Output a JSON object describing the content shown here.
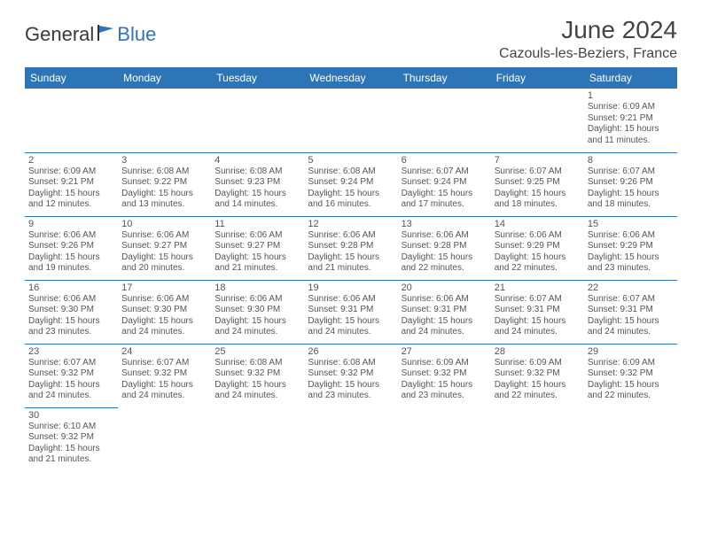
{
  "logo": {
    "text1": "General",
    "text2": "Blue"
  },
  "title": "June 2024",
  "location": "Cazouls-les-Beziers, France",
  "colors": {
    "header_bg": "#2e75b6",
    "header_text": "#ffffff",
    "border": "#2e75b6",
    "text": "#555555",
    "title": "#444444"
  },
  "day_headers": [
    "Sunday",
    "Monday",
    "Tuesday",
    "Wednesday",
    "Thursday",
    "Friday",
    "Saturday"
  ],
  "weeks": [
    [
      null,
      null,
      null,
      null,
      null,
      null,
      {
        "n": "1",
        "sr": "Sunrise: 6:09 AM",
        "ss": "Sunset: 9:21 PM",
        "d1": "Daylight: 15 hours",
        "d2": "and 11 minutes."
      }
    ],
    [
      {
        "n": "2",
        "sr": "Sunrise: 6:09 AM",
        "ss": "Sunset: 9:21 PM",
        "d1": "Daylight: 15 hours",
        "d2": "and 12 minutes."
      },
      {
        "n": "3",
        "sr": "Sunrise: 6:08 AM",
        "ss": "Sunset: 9:22 PM",
        "d1": "Daylight: 15 hours",
        "d2": "and 13 minutes."
      },
      {
        "n": "4",
        "sr": "Sunrise: 6:08 AM",
        "ss": "Sunset: 9:23 PM",
        "d1": "Daylight: 15 hours",
        "d2": "and 14 minutes."
      },
      {
        "n": "5",
        "sr": "Sunrise: 6:08 AM",
        "ss": "Sunset: 9:24 PM",
        "d1": "Daylight: 15 hours",
        "d2": "and 16 minutes."
      },
      {
        "n": "6",
        "sr": "Sunrise: 6:07 AM",
        "ss": "Sunset: 9:24 PM",
        "d1": "Daylight: 15 hours",
        "d2": "and 17 minutes."
      },
      {
        "n": "7",
        "sr": "Sunrise: 6:07 AM",
        "ss": "Sunset: 9:25 PM",
        "d1": "Daylight: 15 hours",
        "d2": "and 18 minutes."
      },
      {
        "n": "8",
        "sr": "Sunrise: 6:07 AM",
        "ss": "Sunset: 9:26 PM",
        "d1": "Daylight: 15 hours",
        "d2": "and 18 minutes."
      }
    ],
    [
      {
        "n": "9",
        "sr": "Sunrise: 6:06 AM",
        "ss": "Sunset: 9:26 PM",
        "d1": "Daylight: 15 hours",
        "d2": "and 19 minutes."
      },
      {
        "n": "10",
        "sr": "Sunrise: 6:06 AM",
        "ss": "Sunset: 9:27 PM",
        "d1": "Daylight: 15 hours",
        "d2": "and 20 minutes."
      },
      {
        "n": "11",
        "sr": "Sunrise: 6:06 AM",
        "ss": "Sunset: 9:27 PM",
        "d1": "Daylight: 15 hours",
        "d2": "and 21 minutes."
      },
      {
        "n": "12",
        "sr": "Sunrise: 6:06 AM",
        "ss": "Sunset: 9:28 PM",
        "d1": "Daylight: 15 hours",
        "d2": "and 21 minutes."
      },
      {
        "n": "13",
        "sr": "Sunrise: 6:06 AM",
        "ss": "Sunset: 9:28 PM",
        "d1": "Daylight: 15 hours",
        "d2": "and 22 minutes."
      },
      {
        "n": "14",
        "sr": "Sunrise: 6:06 AM",
        "ss": "Sunset: 9:29 PM",
        "d1": "Daylight: 15 hours",
        "d2": "and 22 minutes."
      },
      {
        "n": "15",
        "sr": "Sunrise: 6:06 AM",
        "ss": "Sunset: 9:29 PM",
        "d1": "Daylight: 15 hours",
        "d2": "and 23 minutes."
      }
    ],
    [
      {
        "n": "16",
        "sr": "Sunrise: 6:06 AM",
        "ss": "Sunset: 9:30 PM",
        "d1": "Daylight: 15 hours",
        "d2": "and 23 minutes."
      },
      {
        "n": "17",
        "sr": "Sunrise: 6:06 AM",
        "ss": "Sunset: 9:30 PM",
        "d1": "Daylight: 15 hours",
        "d2": "and 24 minutes."
      },
      {
        "n": "18",
        "sr": "Sunrise: 6:06 AM",
        "ss": "Sunset: 9:30 PM",
        "d1": "Daylight: 15 hours",
        "d2": "and 24 minutes."
      },
      {
        "n": "19",
        "sr": "Sunrise: 6:06 AM",
        "ss": "Sunset: 9:31 PM",
        "d1": "Daylight: 15 hours",
        "d2": "and 24 minutes."
      },
      {
        "n": "20",
        "sr": "Sunrise: 6:06 AM",
        "ss": "Sunset: 9:31 PM",
        "d1": "Daylight: 15 hours",
        "d2": "and 24 minutes."
      },
      {
        "n": "21",
        "sr": "Sunrise: 6:07 AM",
        "ss": "Sunset: 9:31 PM",
        "d1": "Daylight: 15 hours",
        "d2": "and 24 minutes."
      },
      {
        "n": "22",
        "sr": "Sunrise: 6:07 AM",
        "ss": "Sunset: 9:31 PM",
        "d1": "Daylight: 15 hours",
        "d2": "and 24 minutes."
      }
    ],
    [
      {
        "n": "23",
        "sr": "Sunrise: 6:07 AM",
        "ss": "Sunset: 9:32 PM",
        "d1": "Daylight: 15 hours",
        "d2": "and 24 minutes."
      },
      {
        "n": "24",
        "sr": "Sunrise: 6:07 AM",
        "ss": "Sunset: 9:32 PM",
        "d1": "Daylight: 15 hours",
        "d2": "and 24 minutes."
      },
      {
        "n": "25",
        "sr": "Sunrise: 6:08 AM",
        "ss": "Sunset: 9:32 PM",
        "d1": "Daylight: 15 hours",
        "d2": "and 24 minutes."
      },
      {
        "n": "26",
        "sr": "Sunrise: 6:08 AM",
        "ss": "Sunset: 9:32 PM",
        "d1": "Daylight: 15 hours",
        "d2": "and 23 minutes."
      },
      {
        "n": "27",
        "sr": "Sunrise: 6:09 AM",
        "ss": "Sunset: 9:32 PM",
        "d1": "Daylight: 15 hours",
        "d2": "and 23 minutes."
      },
      {
        "n": "28",
        "sr": "Sunrise: 6:09 AM",
        "ss": "Sunset: 9:32 PM",
        "d1": "Daylight: 15 hours",
        "d2": "and 22 minutes."
      },
      {
        "n": "29",
        "sr": "Sunrise: 6:09 AM",
        "ss": "Sunset: 9:32 PM",
        "d1": "Daylight: 15 hours",
        "d2": "and 22 minutes."
      }
    ],
    [
      {
        "n": "30",
        "sr": "Sunrise: 6:10 AM",
        "ss": "Sunset: 9:32 PM",
        "d1": "Daylight: 15 hours",
        "d2": "and 21 minutes."
      },
      null,
      null,
      null,
      null,
      null,
      null
    ]
  ]
}
